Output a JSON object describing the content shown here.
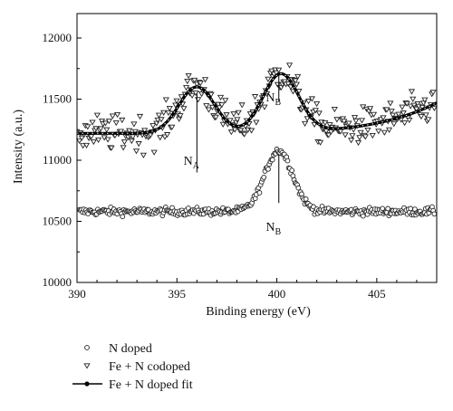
{
  "chart_data": {
    "type": "scatter",
    "title": "",
    "xlabel": "Binding energy (eV)",
    "ylabel": "Intensity (a.u.)",
    "xlim": [
      390,
      408
    ],
    "ylim": [
      10000,
      12200
    ],
    "xticks": [
      390,
      395,
      400,
      405
    ],
    "yticks": [
      10000,
      10500,
      11000,
      11500,
      12000
    ],
    "grid": false,
    "legend_position": "below",
    "series": [
      {
        "name": "N doped",
        "marker": "open-circle",
        "baseline": 10580,
        "peaks": [
          {
            "center": 400.1,
            "height": 500,
            "width": 0.7
          }
        ],
        "noise": 45,
        "color": "#222222"
      },
      {
        "name": "Fe + N codoped",
        "marker": "open-down-triangle",
        "baseline": 11220,
        "peaks": [
          {
            "center": 396.0,
            "height": 380,
            "width": 0.9
          },
          {
            "center": 400.2,
            "height": 480,
            "width": 0.9
          }
        ],
        "slope_end": 250,
        "noise": 210,
        "color": "#222222"
      },
      {
        "name": "Fe + N doped fit",
        "marker": "line-with-dots",
        "baseline": 11220,
        "peaks": [
          {
            "center": 396.0,
            "height": 380,
            "width": 0.9
          },
          {
            "center": 400.2,
            "height": 480,
            "width": 0.9
          }
        ],
        "slope_end": 250,
        "color": "#000000"
      }
    ],
    "annotations": [
      {
        "text": "N",
        "sub": "A",
        "x": 396.0,
        "y": 11000,
        "line_from": 11550,
        "line_to": 10900
      },
      {
        "text": "N",
        "sub": "B",
        "x": 400.1,
        "y": 11520,
        "line_from": 11700,
        "line_to": 11480
      },
      {
        "text": "N",
        "sub": "B",
        "x": 400.1,
        "y": 10460,
        "line_from": 11050,
        "line_to": 10650
      }
    ]
  }
}
